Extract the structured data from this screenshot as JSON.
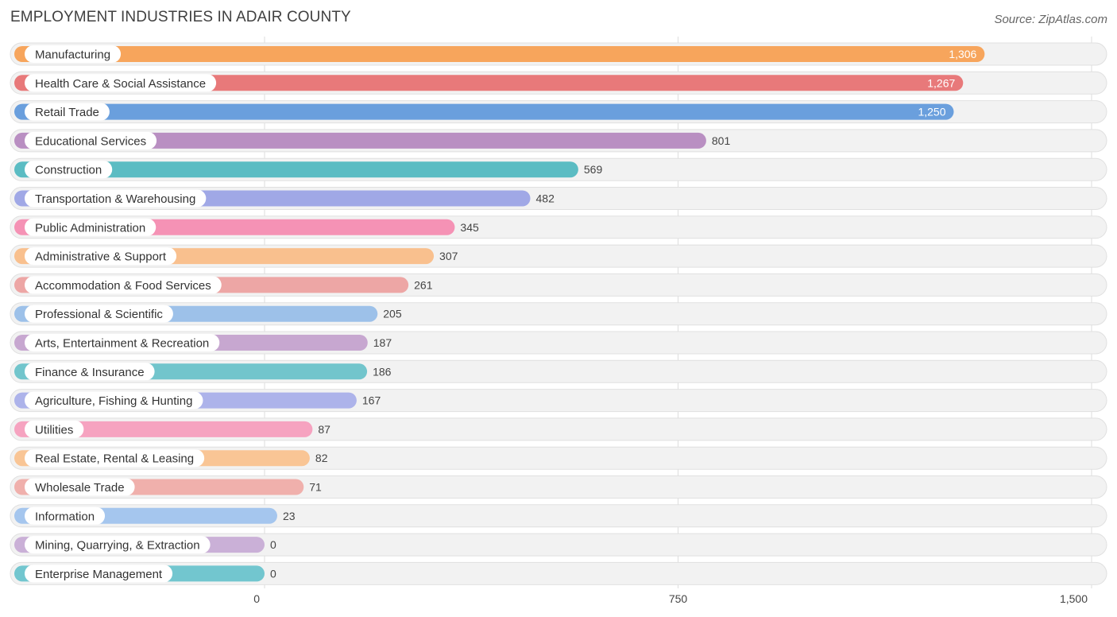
{
  "header": {
    "title": "EMPLOYMENT INDUSTRIES IN ADAIR COUNTY",
    "source": "Source: ZipAtlas.com"
  },
  "chart_data": {
    "type": "bar",
    "orientation": "horizontal",
    "categories": [
      "Manufacturing",
      "Health Care & Social Assistance",
      "Retail Trade",
      "Educational Services",
      "Construction",
      "Transportation & Warehousing",
      "Public Administration",
      "Administrative & Support",
      "Accommodation & Food Services",
      "Professional & Scientific",
      "Arts, Entertainment & Recreation",
      "Finance & Insurance",
      "Agriculture, Fishing & Hunting",
      "Utilities",
      "Real Estate, Rental & Leasing",
      "Wholesale Trade",
      "Information",
      "Mining, Quarrying, & Extraction",
      "Enterprise Management"
    ],
    "values": [
      1306,
      1267,
      1250,
      801,
      569,
      482,
      345,
      307,
      261,
      205,
      187,
      186,
      167,
      87,
      82,
      71,
      23,
      0,
      0
    ],
    "value_labels": [
      "1,306",
      "1,267",
      "1,250",
      "801",
      "569",
      "482",
      "345",
      "307",
      "261",
      "205",
      "187",
      "186",
      "167",
      "87",
      "82",
      "71",
      "23",
      "0",
      "0"
    ],
    "colors": [
      "#f7a55c",
      "#e8797a",
      "#6a9fdd",
      "#b98fc2",
      "#5bbcc3",
      "#a0a8e6",
      "#f592b5",
      "#f9c08e",
      "#eda6a5",
      "#9dc1e9",
      "#c7a7d0",
      "#72c5cc",
      "#adb3ea",
      "#f6a3c0",
      "#f9c595",
      "#f0b0ac",
      "#a5c6ee",
      "#cab0d7",
      "#72c6cf"
    ],
    "xticks": [
      0,
      750,
      1500
    ],
    "xtick_labels": [
      "0",
      "750",
      "1,500"
    ],
    "xlim": [
      0,
      1500
    ],
    "grid": true
  }
}
